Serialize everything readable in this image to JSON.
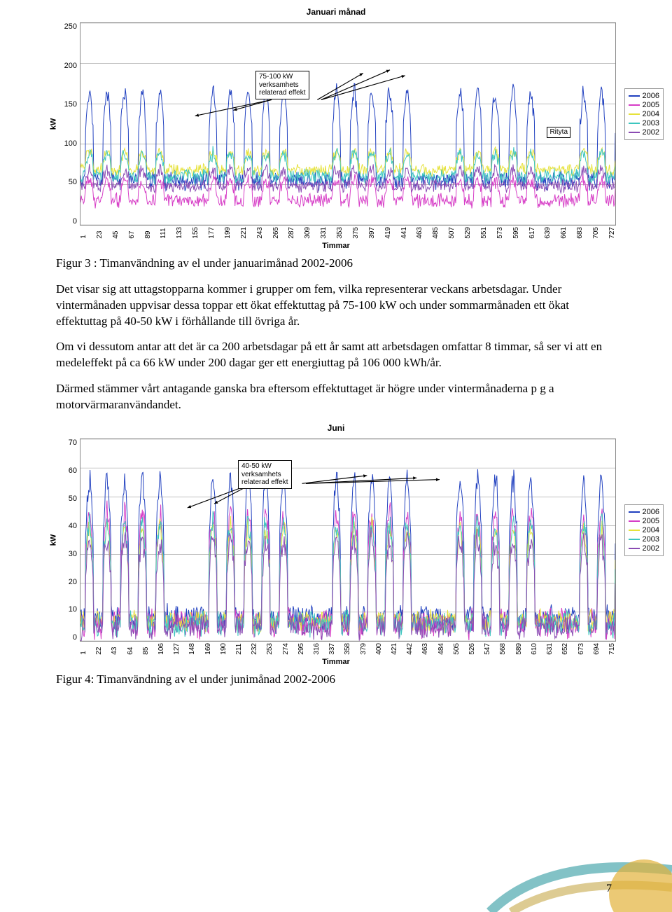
{
  "chart1": {
    "title": "Januari månad",
    "ylabel": "kW",
    "xlabel": "Timmar",
    "ylim": [
      0,
      250
    ],
    "ytick_step": 50,
    "yticks": [
      "0",
      "50",
      "100",
      "150",
      "200",
      "250"
    ],
    "xticks": [
      "1",
      "23",
      "45",
      "67",
      "89",
      "111",
      "133",
      "155",
      "177",
      "199",
      "221",
      "243",
      "265",
      "287",
      "309",
      "331",
      "353",
      "375",
      "397",
      "419",
      "441",
      "463",
      "485",
      "507",
      "529",
      "551",
      "573",
      "595",
      "617",
      "639",
      "661",
      "683",
      "705",
      "727"
    ],
    "annot": "75-100 kW\nverksamhets\nrelaterad effekt",
    "annot2": "Rityta",
    "series": [
      {
        "name": "2006",
        "color": "#1f3fbf"
      },
      {
        "name": "2005",
        "color": "#d63cc6"
      },
      {
        "name": "2004",
        "color": "#e6e23a"
      },
      {
        "name": "2003",
        "color": "#3cc6bf"
      },
      {
        "name": "2002",
        "color": "#8a4bb3"
      }
    ],
    "grid_color": "#999999",
    "background_color": "#ffffff"
  },
  "caption1": "Figur 3 : Timanvändning av el under januarimånad 2002-2006",
  "para1": "Det visar sig att uttagstopparna kommer i grupper om fem, vilka representerar veckans arbetsdagar. Under vintermånaden uppvisar dessa toppar ett ökat effektuttag på 75-100 kW och under sommarmånaden ett ökat effektuttag på 40-50 kW i förhållande till övriga år.",
  "para2": "Om vi dessutom antar att det är ca 200 arbetsdagar på ett år samt att arbetsdagen omfattar 8 timmar, så ser vi att en medeleffekt på ca 66 kW under 200 dagar ger ett energiuttag på 106 000 kWh/år.",
  "para3": "Därmed stämmer vårt antagande ganska bra eftersom effektuttaget är högre under vintermånaderna p g a motorvärmaranvändandet.",
  "chart2": {
    "title": "Juni",
    "ylabel": "kW",
    "xlabel": "Timmar",
    "ylim": [
      0,
      70
    ],
    "ytick_step": 10,
    "yticks": [
      "0",
      "10",
      "20",
      "30",
      "40",
      "50",
      "60",
      "70"
    ],
    "xticks": [
      "1",
      "22",
      "43",
      "64",
      "85",
      "106",
      "127",
      "148",
      "169",
      "190",
      "211",
      "232",
      "253",
      "274",
      "295",
      "316",
      "337",
      "358",
      "379",
      "400",
      "421",
      "442",
      "463",
      "484",
      "505",
      "526",
      "547",
      "568",
      "589",
      "610",
      "631",
      "652",
      "673",
      "694",
      "715"
    ],
    "annot": "40-50 kW\nverksamhets\nrelaterad effekt",
    "series": [
      {
        "name": "2006",
        "color": "#1f3fbf"
      },
      {
        "name": "2005",
        "color": "#d63cc6"
      },
      {
        "name": "2004",
        "color": "#e6e23a"
      },
      {
        "name": "2003",
        "color": "#3cc6bf"
      },
      {
        "name": "2002",
        "color": "#8a4bb3"
      }
    ],
    "grid_color": "#999999",
    "background_color": "#ffffff"
  },
  "caption2": "Figur 4: Timanvändning av el under junimånad 2002-2006",
  "page_number": "7",
  "deco": {
    "arc1": "#2f9aa0",
    "arc2": "#c6a94a",
    "circle": "#e2b23b"
  }
}
